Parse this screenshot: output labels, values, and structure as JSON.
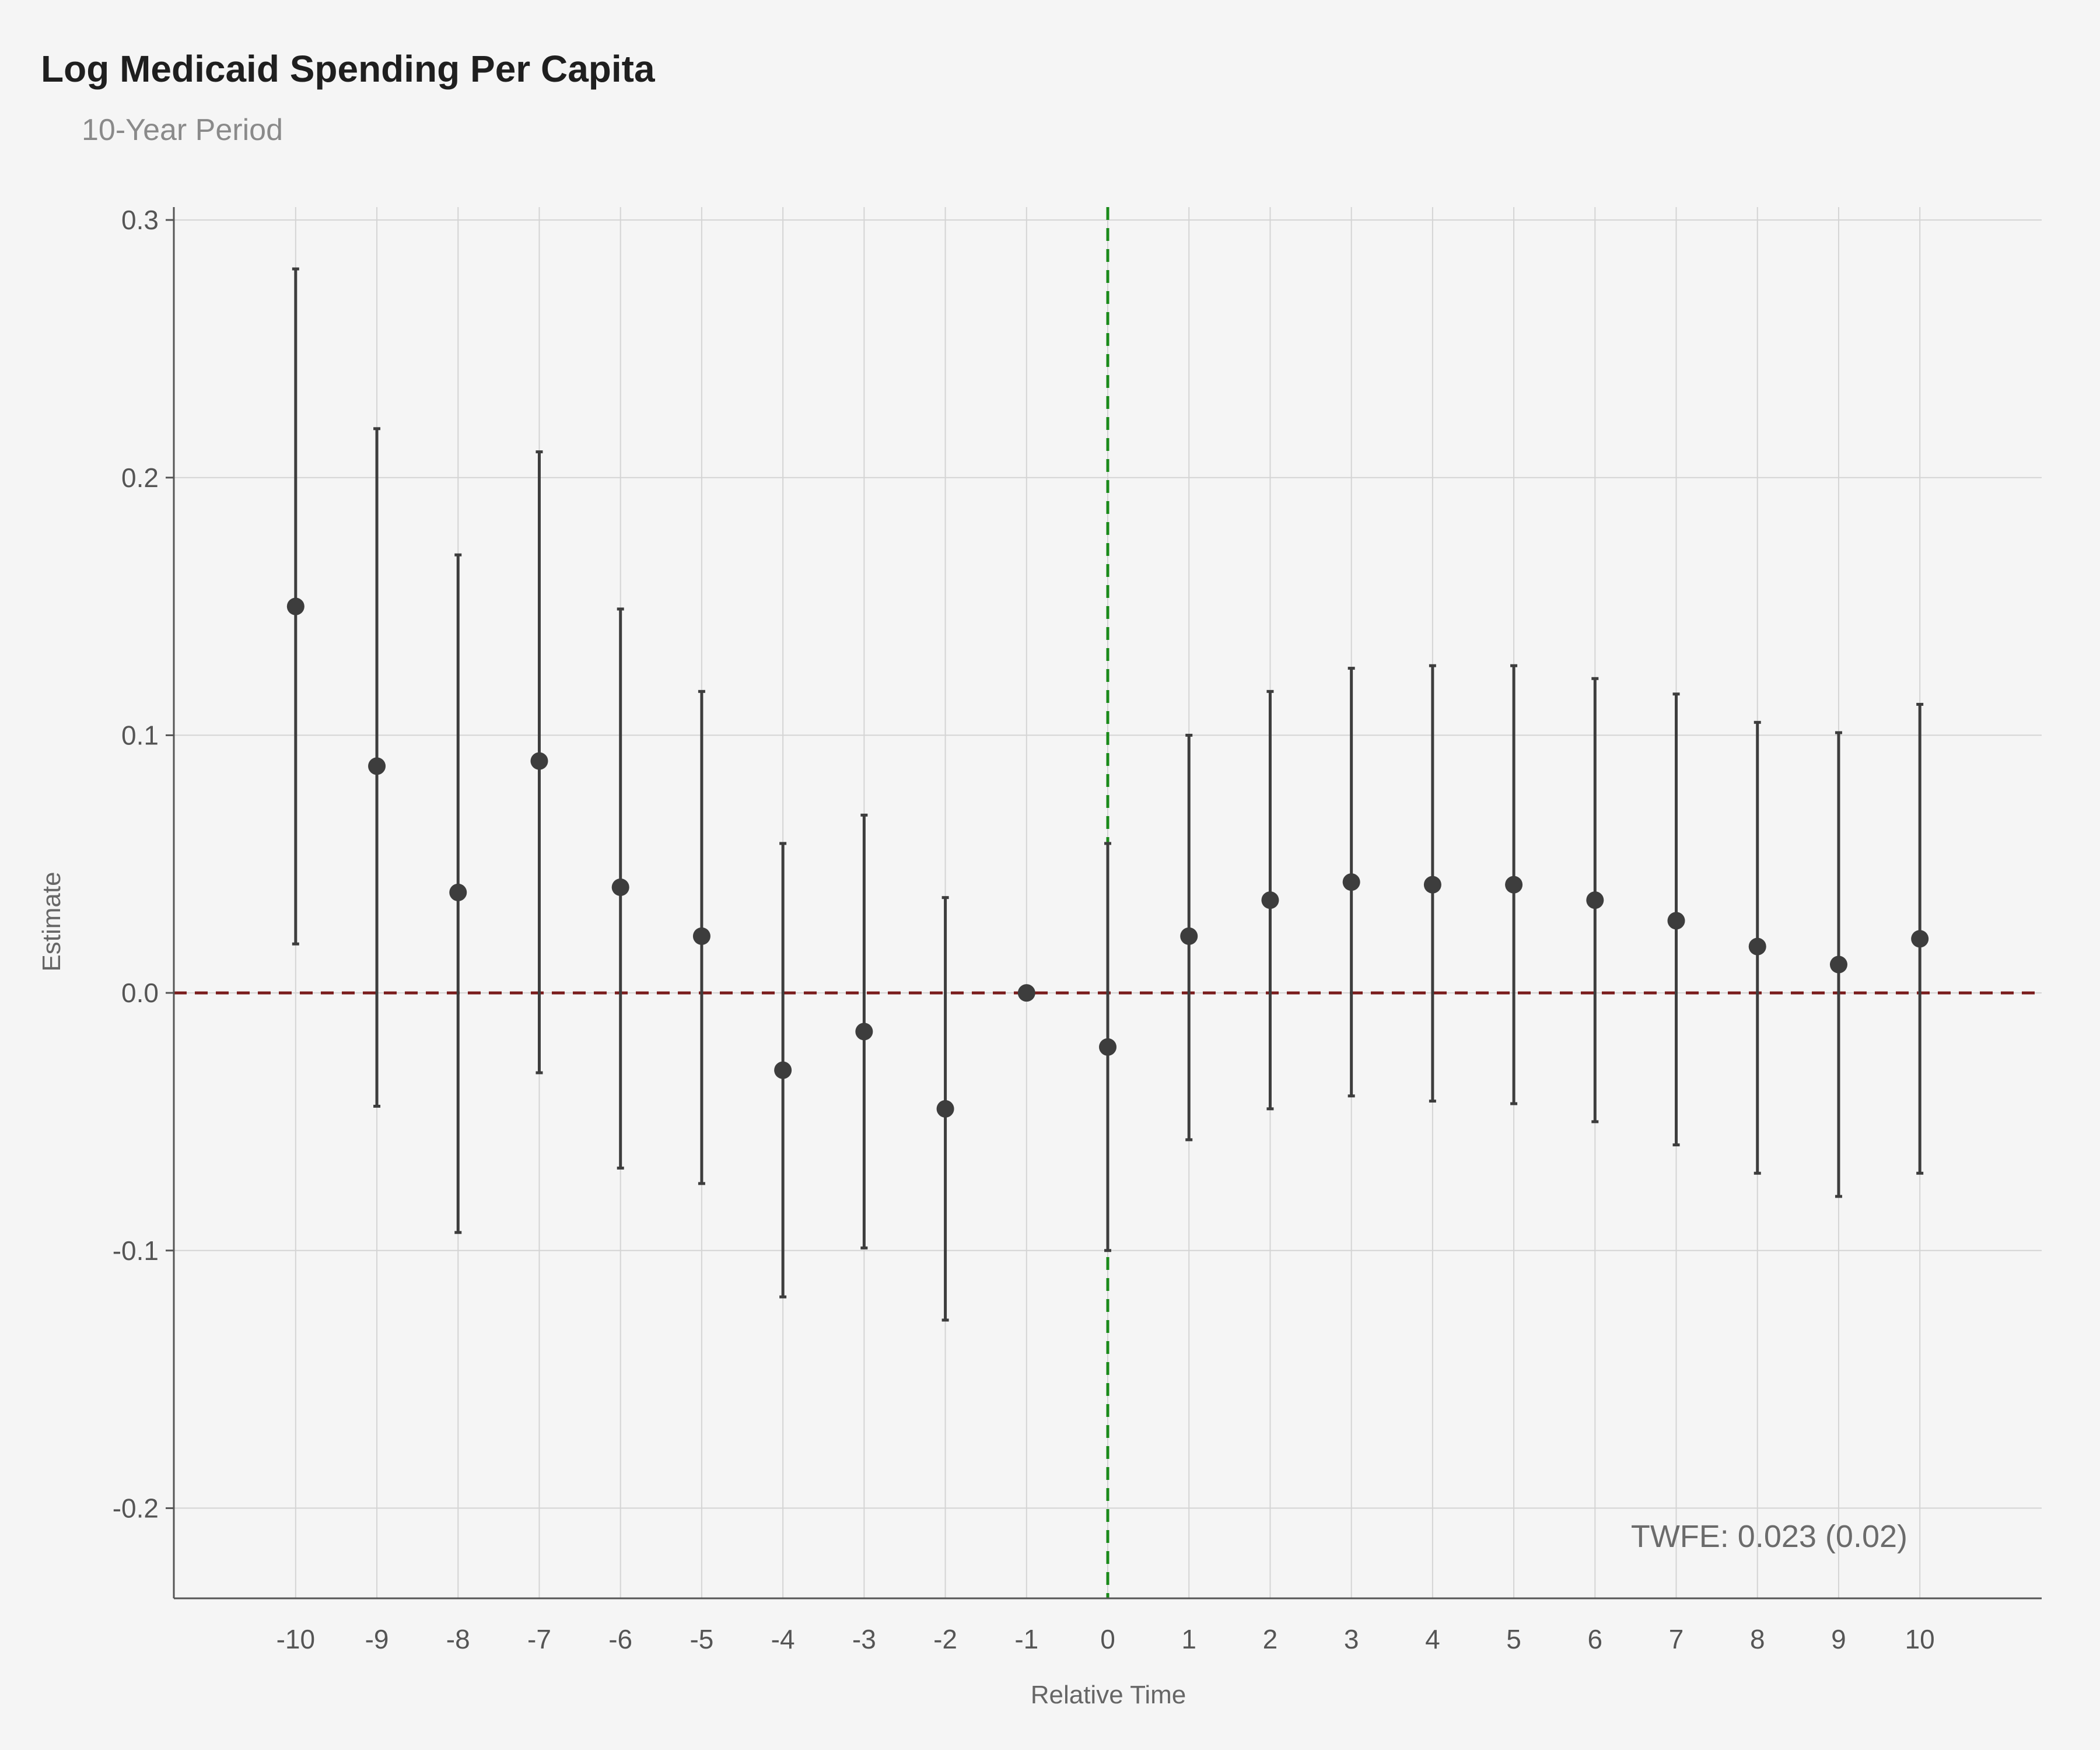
{
  "chart_data": {
    "type": "scatter",
    "title": "Log Medicaid Spending Per Capita",
    "subtitle": "10-Year Period",
    "xlabel": "Relative Time",
    "ylabel": "Estimate",
    "xlim": [
      -11.5,
      11.5
    ],
    "ylim": [
      -0.235,
      0.305
    ],
    "x_ticks": [
      -10,
      -9,
      -8,
      -7,
      -6,
      -5,
      -4,
      -3,
      -2,
      -1,
      0,
      1,
      2,
      3,
      4,
      5,
      6,
      7,
      8,
      9,
      10
    ],
    "y_ticks": [
      -0.2,
      -0.1,
      0.0,
      0.1,
      0.2,
      0.3
    ],
    "y_tick_labels": [
      "-0.2",
      "-0.1",
      "0.0",
      "0.1",
      "0.2",
      "0.3"
    ],
    "grid": true,
    "reference_lines": [
      {
        "orientation": "horizontal",
        "value": 0.0,
        "style": "dashed",
        "color": "#7a1c1c"
      },
      {
        "orientation": "vertical",
        "value": 0,
        "style": "dashed",
        "color": "#1a8a1a"
      }
    ],
    "annotation": "TWFE: 0.023 (0.02)",
    "colors": {
      "points": "#3d3d3d",
      "grid": "#d4d4d4",
      "axis": "#555555",
      "text": "#555555"
    },
    "series": [
      {
        "x": [
          -10,
          -9,
          -8,
          -7,
          -6,
          -5,
          -4,
          -3,
          -2,
          -1,
          0,
          1,
          2,
          3,
          4,
          5,
          6,
          7,
          8,
          9,
          10
        ],
        "y": [
          0.15,
          0.088,
          0.039,
          0.09,
          0.041,
          0.022,
          -0.03,
          -0.015,
          -0.045,
          0.0,
          -0.021,
          0.022,
          0.036,
          0.043,
          0.042,
          0.042,
          0.036,
          0.028,
          0.018,
          0.011,
          0.021
        ],
        "lower": [
          0.019,
          -0.044,
          -0.093,
          -0.031,
          -0.068,
          -0.074,
          -0.118,
          -0.099,
          -0.127,
          0.0,
          -0.1,
          -0.057,
          -0.045,
          -0.04,
          -0.042,
          -0.043,
          -0.05,
          -0.059,
          -0.07,
          -0.079,
          -0.07
        ],
        "upper": [
          0.281,
          0.219,
          0.17,
          0.21,
          0.149,
          0.117,
          0.058,
          0.069,
          0.037,
          0.0,
          0.058,
          0.1,
          0.117,
          0.126,
          0.127,
          0.127,
          0.122,
          0.116,
          0.105,
          0.101,
          0.112
        ]
      }
    ]
  }
}
